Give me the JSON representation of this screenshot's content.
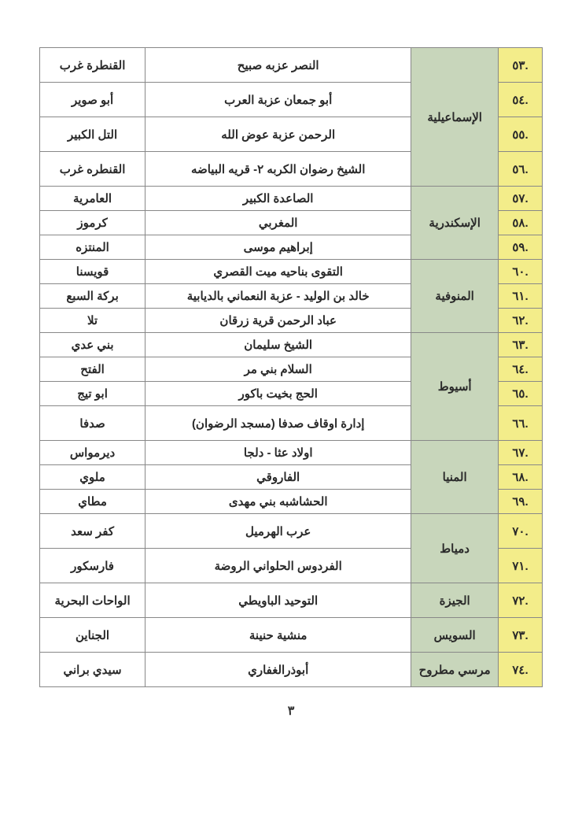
{
  "page_number": "٣",
  "colors": {
    "num_bg": "#f3ed8a",
    "gov_bg": "#c8d6bb",
    "cell_bg": "#ffffff",
    "border": "#888888"
  },
  "rows": [
    {
      "num": ".٥٣",
      "place": "النصر عزبه صبيح",
      "district": "القنطرة غرب",
      "rowclass": "tall"
    },
    {
      "num": ".٥٤",
      "gov": "الإسماعيلية",
      "gov_span": 4,
      "place": "أبو جمعان عزبة العرب",
      "district": "أبو صوير",
      "rowclass": "tall"
    },
    {
      "num": ".٥٥",
      "place": "الرحمن عزبة عوض الله",
      "district": "التل الكبير",
      "rowclass": "tall"
    },
    {
      "num": ".٥٦",
      "place": "الشيخ رضوان الكربه ٢- قريه البياضه",
      "district": "القنطره غرب",
      "rowclass": "tall"
    },
    {
      "num": ".٥٧",
      "place": "الصاعدة الكبير",
      "district": "العامرية",
      "rowclass": "short"
    },
    {
      "num": ".٥٨",
      "gov": "الإسكندرية",
      "gov_span": 3,
      "place": "المغربي",
      "district": "كرموز",
      "rowclass": "short"
    },
    {
      "num": ".٥٩",
      "place": "إبراهيم موسى",
      "district": "المنتزه",
      "rowclass": "short"
    },
    {
      "num": ".٦٠",
      "place": "التقوى بناحيه ميت القصري",
      "district": "قويسنا",
      "rowclass": "short"
    },
    {
      "num": ".٦١",
      "gov": "المنوفية",
      "gov_span": 3,
      "place": "خالد بن الوليد - عزبة النعماني بالديابية",
      "district": "بركة السبع",
      "rowclass": "short"
    },
    {
      "num": ".٦٢",
      "place": "عباد الرحمن قرية زرقان",
      "district": "تلا",
      "rowclass": "short"
    },
    {
      "num": ".٦٣",
      "place": "الشيخ سليمان",
      "district": "بني عدي",
      "rowclass": "short"
    },
    {
      "num": ".٦٤",
      "gov": "أسيوط",
      "gov_span": 4,
      "place": "السلام بني مر",
      "district": "الفتح",
      "rowclass": "short"
    },
    {
      "num": ".٦٥",
      "place": "الحج بخيت باكور",
      "district": "ابو تيج",
      "rowclass": "short"
    },
    {
      "num": ".٦٦",
      "place": "إدارة اوقاف صدفا (مسجد الرضوان)",
      "district": "صدفا",
      "rowclass": "tall"
    },
    {
      "num": ".٦٧",
      "place": "اولاد عثا - دلجا",
      "district": "ديرمواس",
      "rowclass": "short"
    },
    {
      "num": ".٦٨",
      "gov": "المنيا",
      "gov_span": 3,
      "place": "الفاروقي",
      "district": "ملوي",
      "rowclass": "short"
    },
    {
      "num": ".٦٩",
      "place": "الحشاشبه بني مهدى",
      "district": "مطاي",
      "rowclass": "short"
    },
    {
      "num": ".٧٠",
      "place": "عرب الهرميل",
      "district": "كفر سعد",
      "rowclass": "tall"
    },
    {
      "num": ".٧١",
      "gov": "دمياط",
      "gov_span": 2,
      "place": "الفردوس الحلواني الروضة",
      "district": "فارسكور",
      "rowclass": "tall"
    },
    {
      "num": ".٧٢",
      "gov": "الجيزة",
      "gov_span": 1,
      "place": "التوحيد الباويطي",
      "district": "الواحات البحرية",
      "rowclass": "tall"
    },
    {
      "num": ".٧٣",
      "gov": "السويس",
      "gov_span": 1,
      "place": "منشية حنينة",
      "district": "الجناين",
      "rowclass": "tall"
    },
    {
      "num": ".٧٤",
      "gov": "مرسي مطروح",
      "gov_span": 1,
      "place": "أبوذرالغفاري",
      "district": "سيدي براني",
      "rowclass": "tall"
    }
  ],
  "gov_starts": [
    0,
    4,
    7,
    10,
    14,
    17,
    19,
    20,
    21
  ]
}
